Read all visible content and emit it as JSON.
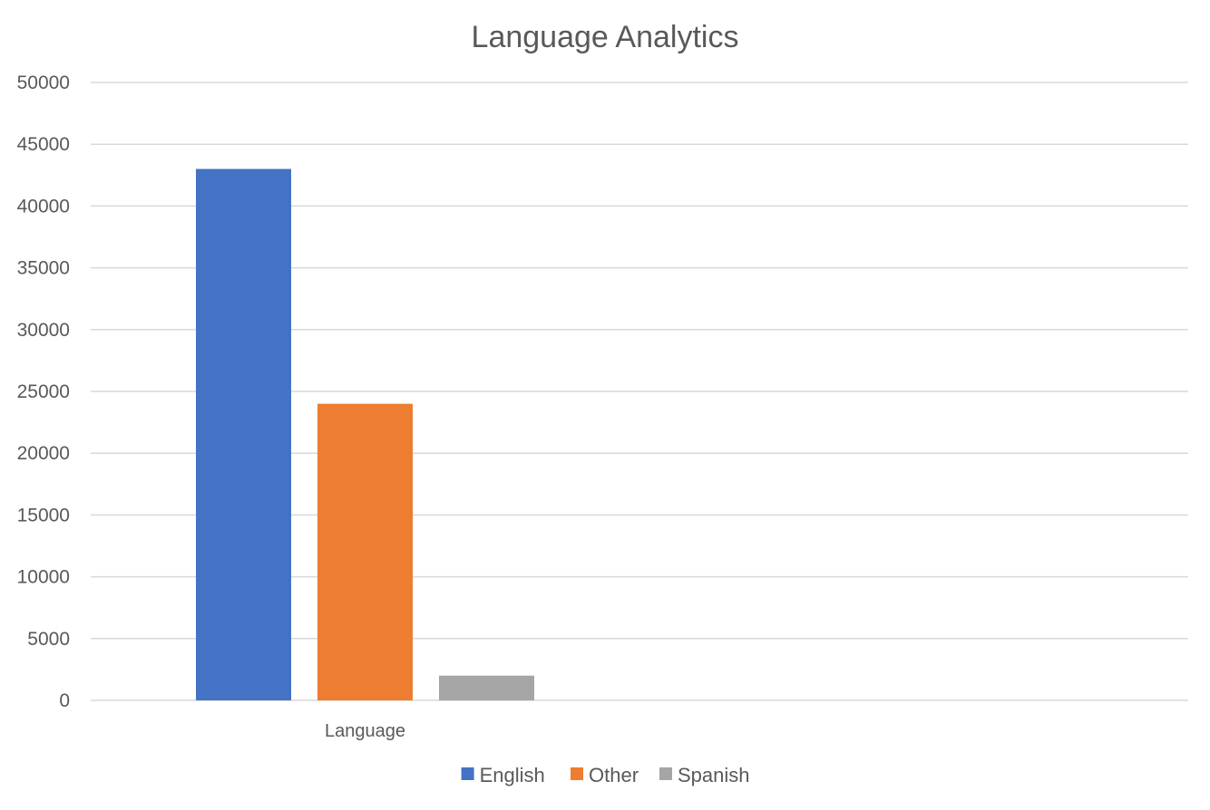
{
  "chart_data": {
    "type": "bar",
    "title": "Language Analytics",
    "categories": [
      "Language"
    ],
    "series": [
      {
        "name": "English",
        "values": [
          43000
        ],
        "color": "#4472C4"
      },
      {
        "name": "Other",
        "values": [
          24000
        ],
        "color": "#ED7D31"
      },
      {
        "name": "Spanish",
        "values": [
          2000
        ],
        "color": "#A5A5A5"
      }
    ],
    "xlabel": "",
    "ylabel": "",
    "ylim": [
      0,
      50000
    ],
    "yticks": [
      0,
      5000,
      10000,
      15000,
      20000,
      25000,
      30000,
      35000,
      40000,
      45000,
      50000
    ],
    "ytick_labels": [
      "0",
      "5000",
      "10000",
      "15000",
      "20000",
      "25000",
      "30000",
      "35000",
      "40000",
      "45000",
      "50000"
    ],
    "grid": true,
    "legend": "bottom"
  }
}
